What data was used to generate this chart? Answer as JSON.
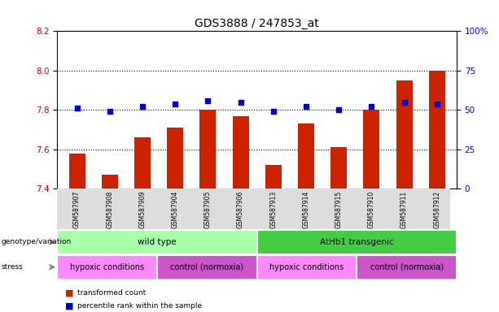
{
  "title": "GDS3888 / 247853_at",
  "samples": [
    "GSM587907",
    "GSM587908",
    "GSM587909",
    "GSM587904",
    "GSM587905",
    "GSM587906",
    "GSM587913",
    "GSM587914",
    "GSM587915",
    "GSM587910",
    "GSM587911",
    "GSM587912"
  ],
  "bar_values": [
    7.58,
    7.47,
    7.66,
    7.71,
    7.8,
    7.77,
    7.52,
    7.73,
    7.61,
    7.8,
    7.95,
    8.0
  ],
  "dot_values": [
    51,
    49,
    52,
    54,
    56,
    55,
    49,
    52,
    50,
    52,
    55,
    54
  ],
  "ylim_left": [
    7.4,
    8.2
  ],
  "ylim_right": [
    0,
    100
  ],
  "yticks_left": [
    7.4,
    7.6,
    7.8,
    8.0,
    8.2
  ],
  "yticks_right": [
    0,
    25,
    50,
    75,
    100
  ],
  "bar_color": "#cc2200",
  "dot_color": "#0000cc",
  "genotype_groups": [
    {
      "label": "wild type",
      "start": 0,
      "end": 6,
      "color": "#aaffaa"
    },
    {
      "label": "AtHb1 transgenic",
      "start": 6,
      "end": 12,
      "color": "#44cc44"
    }
  ],
  "stress_groups": [
    {
      "label": "hypoxic conditions",
      "start": 0,
      "end": 3,
      "color": "#ff88ff"
    },
    {
      "label": "control (normoxia)",
      "start": 3,
      "end": 6,
      "color": "#cc55cc"
    },
    {
      "label": "hypoxic conditions",
      "start": 6,
      "end": 9,
      "color": "#ff88ff"
    },
    {
      "label": "control (normoxia)",
      "start": 9,
      "end": 12,
      "color": "#cc55cc"
    }
  ],
  "legend_items": [
    {
      "label": "transformed count",
      "color": "#cc2200"
    },
    {
      "label": "percentile rank within the sample",
      "color": "#0000cc"
    }
  ],
  "ylabel_left_color": "#cc0000",
  "ylabel_right_color": "#0000cc",
  "title_fontsize": 10,
  "tick_fontsize": 7.5,
  "bar_width": 0.5
}
